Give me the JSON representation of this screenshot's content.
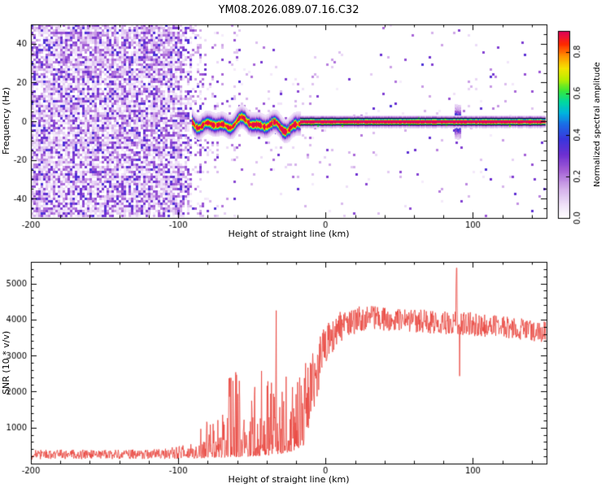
{
  "chart_data": [
    {
      "type": "heatmap",
      "title": "YM08.2026.089.07.16.C32",
      "xlabel": "Height of straight line (km)",
      "ylabel": "Frequency (Hz)",
      "xlim": [
        -200,
        150
      ],
      "ylim": [
        -50,
        50
      ],
      "xticks": [
        -200,
        -100,
        0,
        100
      ],
      "yticks": [
        -40,
        -20,
        0,
        20,
        40
      ],
      "x_minor_step": 20,
      "y_minor_step": 5,
      "colorbar": {
        "label": "Normalized spectral amplitude",
        "ticks": [
          0.0,
          0.2,
          0.4,
          0.6,
          0.8
        ],
        "min": 0,
        "max": 0.9
      },
      "colormap": [
        [
          0.0,
          "#ffffff"
        ],
        [
          0.06,
          "#f2e7fa"
        ],
        [
          0.16,
          "#d3aeea"
        ],
        [
          0.26,
          "#a05ad5"
        ],
        [
          0.34,
          "#6c2fd1"
        ],
        [
          0.42,
          "#3a35dd"
        ],
        [
          0.5,
          "#1b6ce6"
        ],
        [
          0.56,
          "#00b4e0"
        ],
        [
          0.62,
          "#00d9a0"
        ],
        [
          0.68,
          "#38e838"
        ],
        [
          0.74,
          "#b8ee00"
        ],
        [
          0.8,
          "#f5e400"
        ],
        [
          0.86,
          "#ff9a00"
        ],
        [
          0.93,
          "#ff2800"
        ],
        [
          1.0,
          "#dd0060"
        ]
      ],
      "render": {
        "seed": 1337,
        "dense_end": -97,
        "fade_end": -78,
        "sparse_end": -55,
        "wave": {
          "x0": -90,
          "x1": -17,
          "halo_amp": 0.32,
          "halo_sigma": 3.4
        },
        "line": {
          "x0": -17,
          "x1": 150,
          "edge_y": 1.8
        },
        "burst": {
          "x": 89.5,
          "sigma_y": 4.5,
          "amp": 0.55
        }
      }
    },
    {
      "type": "line",
      "xlabel": "Height of straight line (km)",
      "ylabel": "SNR (10 * v/v)",
      "xlim": [
        -200,
        150
      ],
      "ylim": [
        0,
        5600
      ],
      "xticks": [
        -200,
        -100,
        0,
        100
      ],
      "yticks": [
        1000,
        2000,
        3000,
        4000,
        5000
      ],
      "x_minor_step": 20,
      "y_minor_step": 200,
      "line_color": "#e8413a",
      "render": {
        "seed": 99,
        "low": [
          [
            -200,
            120
          ],
          [
            -100,
            130
          ],
          [
            -85,
            150
          ],
          [
            -60,
            180
          ],
          [
            -40,
            220
          ],
          [
            -25,
            300
          ],
          [
            -15,
            500
          ],
          [
            -8,
            1500
          ],
          [
            0,
            2800
          ],
          [
            8,
            3300
          ],
          [
            15,
            3550
          ],
          [
            30,
            3700
          ],
          [
            60,
            3650
          ],
          [
            90,
            3550
          ],
          [
            120,
            3500
          ],
          [
            150,
            3350
          ]
        ],
        "high": [
          [
            -200,
            380
          ],
          [
            -110,
            400
          ],
          [
            -95,
            550
          ],
          [
            -88,
            950
          ],
          [
            -82,
            1300
          ],
          [
            -75,
            1100
          ],
          [
            -70,
            1500
          ],
          [
            -63,
            2950
          ],
          [
            -59,
            2400
          ],
          [
            -53,
            1500
          ],
          [
            -48,
            2500
          ],
          [
            -44,
            2950
          ],
          [
            -40,
            2300
          ],
          [
            -36,
            2500
          ],
          [
            -33,
            3300
          ],
          [
            -30,
            2400
          ],
          [
            -26,
            2600
          ],
          [
            -22,
            2300
          ],
          [
            -17,
            2700
          ],
          [
            -12,
            3000
          ],
          [
            -6,
            3400
          ],
          [
            0,
            3950
          ],
          [
            8,
            4200
          ],
          [
            15,
            4300
          ],
          [
            25,
            4400
          ],
          [
            40,
            4350
          ],
          [
            60,
            4300
          ],
          [
            80,
            4250
          ],
          [
            86,
            4150
          ],
          [
            88,
            4250
          ],
          [
            89,
            5450
          ],
          [
            90,
            4250
          ],
          [
            100,
            4200
          ],
          [
            120,
            4100
          ],
          [
            150,
            3950
          ]
        ],
        "pow": [
          [
            -200,
            1.0
          ],
          [
            -98,
            1.0
          ],
          [
            -88,
            2.4
          ],
          [
            -18,
            2.4
          ],
          [
            -8,
            1.5
          ],
          [
            -2,
            1.1
          ],
          [
            150,
            1.05
          ]
        ],
        "spikes": [
          {
            "x": -33.5,
            "y": 4250
          },
          {
            "x": 89,
            "y": 5430
          },
          {
            "x": 91,
            "y": 2430
          }
        ]
      }
    }
  ]
}
